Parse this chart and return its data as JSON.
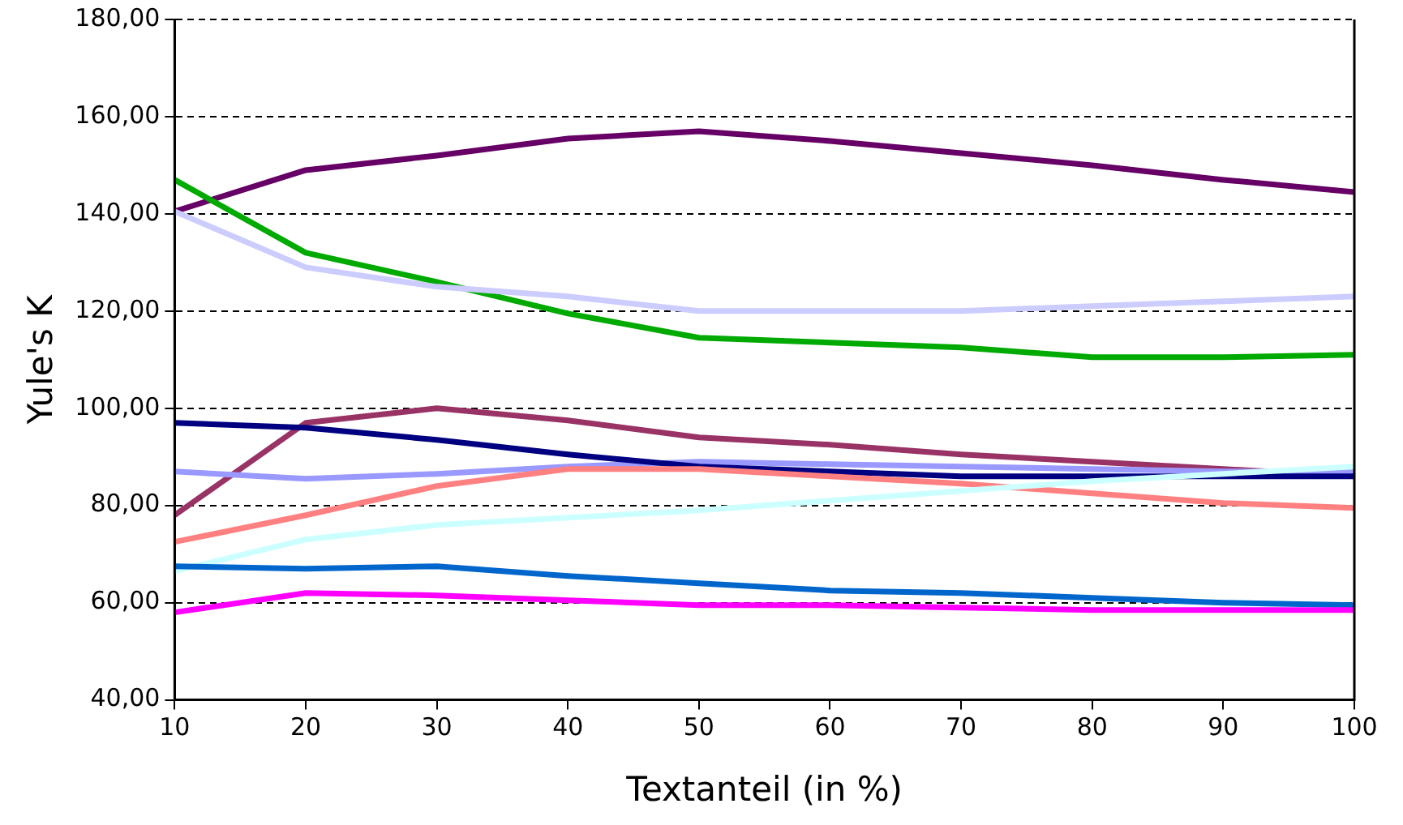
{
  "chart_data": {
    "type": "line",
    "xlabel": "Textanteil (in %)",
    "ylabel": "Yule's K",
    "x": [
      10,
      20,
      30,
      40,
      50,
      60,
      70,
      80,
      90,
      100
    ],
    "xlim": [
      10,
      100
    ],
    "xticks": [
      10,
      20,
      30,
      40,
      50,
      60,
      70,
      80,
      90,
      100
    ],
    "ylim": [
      40,
      180
    ],
    "yticks": [
      {
        "value": 40,
        "label": "40,00"
      },
      {
        "value": 60,
        "label": "60,00"
      },
      {
        "value": 80,
        "label": "80,00"
      },
      {
        "value": 100,
        "label": "100,00"
      },
      {
        "value": 120,
        "label": "120,00"
      },
      {
        "value": 140,
        "label": "140,00"
      },
      {
        "value": 160,
        "label": "160,00"
      },
      {
        "value": 180,
        "label": "180,00"
      }
    ],
    "grid": "y",
    "legend": false,
    "marker": "none",
    "line_style": "solid",
    "series": [
      {
        "color": "#660066",
        "values": [
          140.5,
          149,
          152,
          155.5,
          157,
          155,
          152.5,
          150,
          147,
          144.5
        ]
      },
      {
        "color": "#00aa00",
        "values": [
          147,
          132,
          126,
          119.5,
          114.5,
          113.5,
          112.5,
          110.5,
          110.5,
          111
        ]
      },
      {
        "color": "#ccccff",
        "values": [
          140.5,
          129,
          125,
          123,
          120,
          120,
          120,
          121,
          122,
          123
        ]
      },
      {
        "color": "#993366",
        "values": [
          78,
          97,
          100,
          97.5,
          94,
          92.5,
          90.5,
          89,
          87.5,
          86
        ]
      },
      {
        "color": "#9999ff",
        "values": [
          87,
          85.5,
          86.5,
          88,
          89,
          88.5,
          88,
          87.5,
          87,
          87
        ]
      },
      {
        "color": "#000080",
        "values": [
          97,
          96,
          93.5,
          90.5,
          88,
          87,
          86,
          86,
          86,
          86
        ]
      },
      {
        "color": "#ff8080",
        "values": [
          72.5,
          78,
          84,
          87.5,
          87.5,
          86,
          84.5,
          82.5,
          80.5,
          79.5
        ]
      },
      {
        "color": "#ccffff",
        "values": [
          66.5,
          73,
          76,
          77.5,
          79,
          81,
          83,
          85,
          86.5,
          88
        ]
      },
      {
        "color": "#0066cc",
        "values": [
          67.5,
          67,
          67.5,
          65.5,
          64,
          62.5,
          62,
          61,
          60,
          59.5
        ]
      },
      {
        "color": "#ff00ff",
        "values": [
          58,
          62,
          61.5,
          60.5,
          59.5,
          59.5,
          59,
          58.5,
          58.5,
          58.5
        ]
      }
    ]
  }
}
